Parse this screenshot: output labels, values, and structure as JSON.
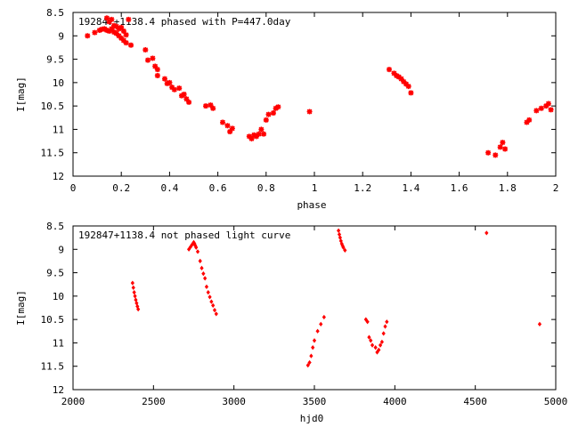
{
  "chart_data": [
    {
      "type": "scatter",
      "title": "192847+1138.4 phased with P=447.0day",
      "xlabel": "phase",
      "ylabel": "I[mag]",
      "xlim": [
        0,
        2
      ],
      "ylim": [
        8.5,
        12
      ],
      "y_inverted": true,
      "xticks": [
        "0",
        "0.2",
        "0.4",
        "0.6",
        "0.8",
        "1",
        "1.2",
        "1.4",
        "1.6",
        "1.8",
        "2"
      ],
      "yticks": [
        "8.5",
        "9",
        "9.5",
        "10",
        "10.5",
        "11",
        "11.5",
        "12"
      ],
      "marker": "star",
      "color": "#ff0000",
      "x": [
        0.06,
        0.09,
        0.11,
        0.12,
        0.13,
        0.14,
        0.14,
        0.15,
        0.15,
        0.16,
        0.16,
        0.17,
        0.17,
        0.18,
        0.18,
        0.19,
        0.19,
        0.2,
        0.2,
        0.21,
        0.21,
        0.22,
        0.22,
        0.23,
        0.24,
        0.3,
        0.31,
        0.33,
        0.34,
        0.35,
        0.35,
        0.38,
        0.39,
        0.4,
        0.41,
        0.42,
        0.44,
        0.45,
        0.46,
        0.47,
        0.48,
        0.55,
        0.57,
        0.58,
        0.62,
        0.64,
        0.65,
        0.66,
        0.73,
        0.74,
        0.75,
        0.76,
        0.77,
        0.78,
        0.79,
        0.8,
        0.81,
        0.83,
        0.84,
        0.85,
        0.98,
        1.31,
        1.33,
        1.34,
        1.35,
        1.36,
        1.37,
        1.38,
        1.39,
        1.4,
        1.72,
        1.75,
        1.77,
        1.78,
        1.79,
        1.88,
        1.89,
        1.92,
        1.94,
        1.96,
        1.97,
        1.98
      ],
      "y": [
        9.0,
        8.93,
        8.88,
        8.86,
        8.85,
        8.62,
        8.88,
        8.7,
        8.9,
        8.65,
        8.85,
        8.78,
        8.92,
        8.8,
        8.95,
        8.85,
        9.0,
        8.82,
        9.05,
        8.9,
        9.1,
        8.98,
        9.15,
        8.65,
        9.2,
        9.3,
        9.52,
        9.48,
        9.65,
        9.72,
        9.85,
        9.92,
        10.02,
        10.0,
        10.1,
        10.15,
        10.12,
        10.28,
        10.25,
        10.35,
        10.42,
        10.5,
        10.48,
        10.55,
        10.85,
        10.92,
        11.05,
        10.98,
        11.15,
        11.2,
        11.12,
        11.15,
        11.1,
        11.0,
        11.1,
        10.8,
        10.68,
        10.65,
        10.55,
        10.52,
        10.62,
        9.72,
        9.8,
        9.85,
        9.88,
        9.92,
        9.98,
        10.03,
        10.08,
        10.22,
        11.5,
        11.55,
        11.38,
        11.28,
        11.42,
        10.85,
        10.8,
        10.6,
        10.55,
        10.5,
        10.45,
        10.58
      ]
    },
    {
      "type": "scatter",
      "title": "192847+1138.4 not phased light curve",
      "xlabel": "hjd0",
      "ylabel": "I[mag]",
      "xlim": [
        2000,
        5000
      ],
      "ylim": [
        8.5,
        12
      ],
      "y_inverted": true,
      "xticks": [
        "2000",
        "2500",
        "3000",
        "3500",
        "4000",
        "4500",
        "5000"
      ],
      "yticks": [
        "8.5",
        "9",
        "9.5",
        "10",
        "10.5",
        "11",
        "11.5",
        "12"
      ],
      "marker": "diamond",
      "color": "#ff0000",
      "x": [
        2370,
        2375,
        2380,
        2385,
        2390,
        2395,
        2400,
        2405,
        2720,
        2730,
        2740,
        2750,
        2755,
        2760,
        2765,
        2775,
        2790,
        2800,
        2810,
        2820,
        2830,
        2840,
        2850,
        2860,
        2870,
        2880,
        2890,
        3460,
        3470,
        3480,
        3490,
        3500,
        3520,
        3540,
        3560,
        3650,
        3655,
        3660,
        3665,
        3670,
        3675,
        3680,
        3690,
        3820,
        3830,
        3840,
        3850,
        3860,
        3880,
        3890,
        3900,
        3910,
        3920,
        3930,
        3940,
        3950,
        4570,
        4900
      ],
      "y": [
        9.72,
        9.82,
        9.92,
        10.0,
        10.08,
        10.15,
        10.22,
        10.28,
        9.0,
        8.95,
        8.9,
        8.85,
        8.88,
        8.92,
        8.96,
        9.05,
        9.25,
        9.4,
        9.52,
        9.62,
        9.8,
        9.92,
        10.02,
        10.12,
        10.2,
        10.3,
        10.38,
        11.48,
        11.42,
        11.28,
        11.1,
        10.95,
        10.75,
        10.6,
        10.45,
        8.6,
        8.68,
        8.75,
        8.82,
        8.88,
        8.92,
        8.96,
        9.02,
        10.5,
        10.55,
        10.88,
        10.95,
        11.05,
        11.1,
        11.2,
        11.15,
        11.05,
        10.98,
        10.8,
        10.65,
        10.55,
        8.65,
        10.6
      ]
    }
  ]
}
